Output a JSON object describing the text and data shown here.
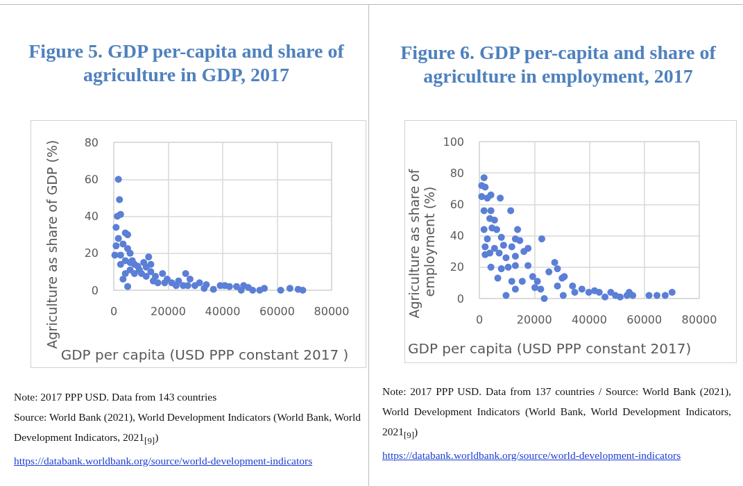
{
  "chart_data": [
    {
      "type": "scatter",
      "title": "Figure 5. GDP per-capita and share of agriculture in GDP, 2017",
      "xlabel": "GDP per capita (USD PPP constant 2017 )",
      "ylabel": "Agriculture as share of GDP (%)",
      "color": "#5b7fd6",
      "marker": "circle",
      "grid": true,
      "xlim": [
        0,
        80000
      ],
      "ylim": [
        0,
        80
      ],
      "xticks": [
        0,
        20000,
        40000,
        60000,
        80000
      ],
      "yticks": [
        0,
        20,
        40,
        60,
        80
      ],
      "x": [
        1700,
        2100,
        1300,
        2500,
        850,
        4250,
        5100,
        400,
        2500,
        3400,
        5100,
        6000,
        6800,
        7600,
        4250,
        5100,
        3400,
        8800,
        10200,
        12800,
        11000,
        11900,
        13600,
        15300,
        16200,
        17900,
        19600,
        21300,
        23800,
        26400,
        28000,
        27200,
        29800,
        34000,
        36600,
        39100,
        42500,
        45100,
        47700,
        46800,
        51000,
        53600,
        55300,
        61300,
        64700,
        67700,
        69400,
        6000,
        7600,
        9400,
        13600,
        11900,
        14500,
        18700,
        22900,
        25500,
        31500,
        33200,
        40800,
        49400,
        1700,
        2500,
        4250,
        850,
        6000
      ],
      "values": [
        60,
        49,
        40,
        41,
        34,
        31,
        30,
        19,
        19,
        25,
        22.5,
        20,
        16,
        14,
        9,
        2,
        6,
        13,
        9,
        18,
        15,
        12.5,
        10,
        7.5,
        4,
        9,
        6,
        4,
        5,
        9,
        6,
        2.5,
        2.5,
        3,
        0.5,
        2.5,
        2,
        2,
        2.5,
        0,
        0,
        0,
        1,
        0,
        1,
        0.5,
        0,
        15,
        9,
        11,
        14,
        7.5,
        5,
        4,
        2.5,
        2.5,
        4,
        1,
        2.5,
        1.5,
        28,
        14,
        16,
        24,
        11
      ],
      "annotations": [
        "Note: 2017 PPP USD. Data from 143 countries",
        "Source: World Bank (2021), World Development Indicators (World Bank, World Development Indicators, 2021$_{[9]}$)",
        "https://databank.worldbank.org/source/world-development-indicators"
      ]
    },
    {
      "type": "scatter",
      "title": "Figure 6. GDP per-capita and share of agriculture in employment, 2017",
      "xlabel": "GDP per capita (USD PPP constant 2017)",
      "ylabel": "Agriculture as share of employment (%)",
      "color": "#5b7fd6",
      "marker": "circle",
      "grid": true,
      "xlim": [
        0,
        80000
      ],
      "ylim": [
        0,
        100
      ],
      "xticks": [
        0,
        20000,
        40000,
        60000,
        80000
      ],
      "yticks": [
        0,
        20,
        40,
        60,
        80,
        100
      ],
      "x": [
        1700,
        840,
        2100,
        840,
        2900,
        4200,
        7600,
        11400,
        1700,
        4200,
        3800,
        5500,
        1700,
        4600,
        6300,
        13900,
        22700,
        2100,
        8000,
        2900,
        3800,
        5500,
        2100,
        4200,
        7200,
        8800,
        11800,
        13100,
        14700,
        17700,
        9700,
        13100,
        16200,
        6700,
        8000,
        10500,
        13100,
        17700,
        11800,
        13100,
        9700,
        15600,
        19400,
        21100,
        20200,
        22300,
        23600,
        25300,
        27400,
        28400,
        30100,
        30900,
        28400,
        30500,
        33900,
        34700,
        37300,
        39800,
        41900,
        43600,
        45700,
        47800,
        49500,
        51200,
        53700,
        54500,
        55800,
        61700,
        64600,
        67600,
        70100
      ],
      "values": [
        77,
        72,
        71,
        65,
        64,
        66,
        64,
        56,
        56,
        56,
        51,
        50,
        44,
        45,
        44,
        44,
        38,
        33,
        39,
        38,
        29,
        32,
        28,
        20,
        29,
        34,
        33,
        38,
        37,
        32,
        26,
        27,
        30,
        13,
        19,
        20,
        21,
        21,
        11,
        6,
        2,
        11,
        14,
        11,
        7,
        6,
        0,
        17,
        23,
        19,
        13,
        14,
        8,
        2,
        8,
        4,
        6,
        4,
        5,
        4,
        1,
        4,
        2,
        1,
        2,
        4,
        2,
        2,
        2,
        2,
        4
      ],
      "annotations": [
        "Note: 2017 PPP USD. Data from 137 countries / Source: World Bank (2021), World Development Indicators (World Bank, World Development Indicators, 2021$_{[9]}$)",
        "https://databank.worldbank.org/source/world-development-indicators"
      ]
    }
  ]
}
